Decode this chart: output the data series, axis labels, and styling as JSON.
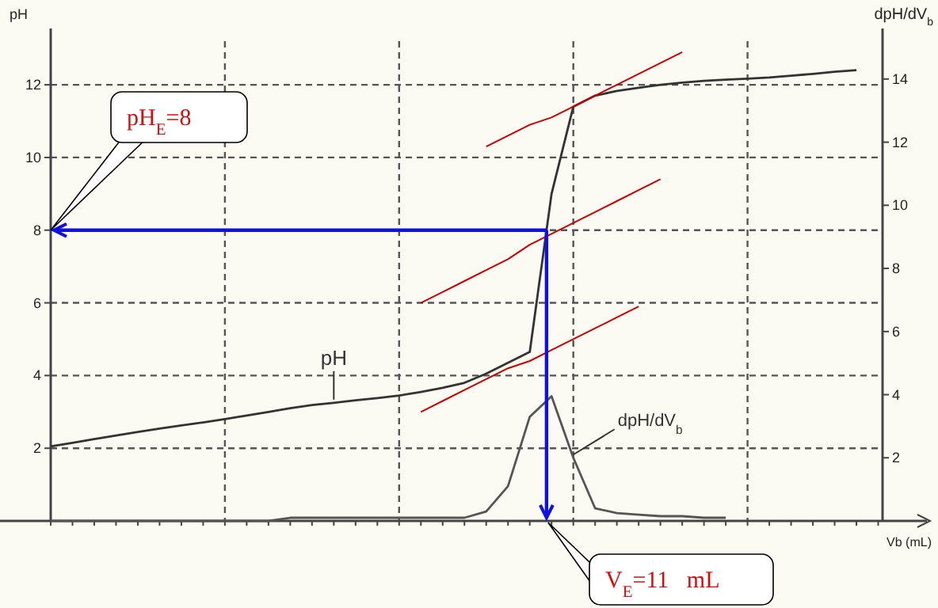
{
  "chart_data": {
    "type": "line",
    "ylabel": "pH",
    "y2label": "dpH/dV$_{b}$",
    "xlabel": "Vb (mL)",
    "categories": [
      null,
      null,
      null,
      null,
      null,
      null,
      null,
      null,
      null,
      null,
      null,
      null,
      null,
      null,
      null,
      null,
      null,
      null,
      null,
      null,
      null,
      null,
      null,
      null,
      null,
      null,
      null,
      null,
      null,
      null,
      null,
      null,
      null,
      null,
      null,
      null,
      null,
      null,
      null
    ],
    "ylim": [
      0,
      13.2
    ],
    "yticks": [
      2,
      4,
      6,
      8,
      10,
      12
    ],
    "y2lim": [
      0,
      15.2
    ],
    "y2ticks": [
      2,
      4,
      6,
      8,
      10,
      12,
      14
    ],
    "grid": true,
    "legend": false,
    "marker": "none",
    "line_style": "solid",
    "series": [
      {
        "name": "pH",
        "color": "#333333",
        "values": [
          2.05,
          2.15,
          2.25,
          2.35,
          2.45,
          2.54,
          2.63,
          2.71,
          2.8,
          2.9,
          3.0,
          3.1,
          3.19,
          3.25,
          3.32,
          3.38,
          3.45,
          3.55,
          3.66,
          3.8,
          4.05,
          4.35,
          4.65,
          9.0,
          11.4,
          11.7,
          11.83,
          11.92,
          12.0,
          12.06,
          12.11,
          12.14,
          12.17,
          12.2,
          12.25,
          12.3,
          12.36,
          12.4,
          null
        ]
      },
      {
        "name": "dpH/dV$_{b}$",
        "color": "#555555",
        "axis": "y2",
        "values": [
          0,
          0,
          0,
          0,
          0,
          0,
          0,
          0,
          0,
          0,
          0,
          0.1,
          0.1,
          0.1,
          0.1,
          0.1,
          0.1,
          0.1,
          0.1,
          0.1,
          0.3,
          1.1,
          3.3,
          3.95,
          2.0,
          0.4,
          0.25,
          0.2,
          0.15,
          0.15,
          0.1,
          0.1,
          null,
          null,
          null,
          null,
          null,
          null,
          null
        ]
      },
      {
        "color": "#cc0000",
        "values": [
          null,
          null,
          null,
          null,
          null,
          null,
          null,
          null,
          null,
          null,
          null,
          null,
          null,
          null,
          null,
          null,
          null,
          null,
          null,
          null,
          10.3,
          10.6,
          10.9,
          11.1,
          11.4,
          11.7,
          12.0,
          12.3,
          12.6,
          12.9,
          null,
          null,
          null,
          null,
          null,
          null,
          null,
          null,
          null
        ]
      },
      {
        "color": "#cc0000",
        "values": [
          null,
          null,
          null,
          null,
          null,
          null,
          null,
          null,
          null,
          null,
          null,
          null,
          null,
          null,
          null,
          null,
          null,
          6.0,
          6.3,
          6.6,
          6.9,
          7.2,
          7.6,
          7.9,
          8.2,
          8.5,
          8.8,
          9.1,
          9.4,
          null,
          null,
          null,
          null,
          null,
          null,
          null,
          null,
          null,
          null
        ]
      },
      {
        "color": "#cc0000",
        "values": [
          null,
          null,
          null,
          null,
          null,
          null,
          null,
          null,
          null,
          null,
          null,
          null,
          null,
          null,
          null,
          null,
          null,
          3.0,
          3.3,
          3.6,
          3.9,
          4.2,
          4.4,
          4.7,
          5.0,
          5.3,
          5.6,
          5.9,
          null,
          null,
          null,
          null,
          null,
          null,
          null,
          null,
          null,
          null,
          null
        ]
      }
    ],
    "ref_lines": [
      {
        "axis": "y",
        "value": 8,
        "color": "#1010e0"
      }
    ],
    "annotations": [
      "pH$_{E}$=8",
      "V$_{E}$=11   mL"
    ]
  }
}
